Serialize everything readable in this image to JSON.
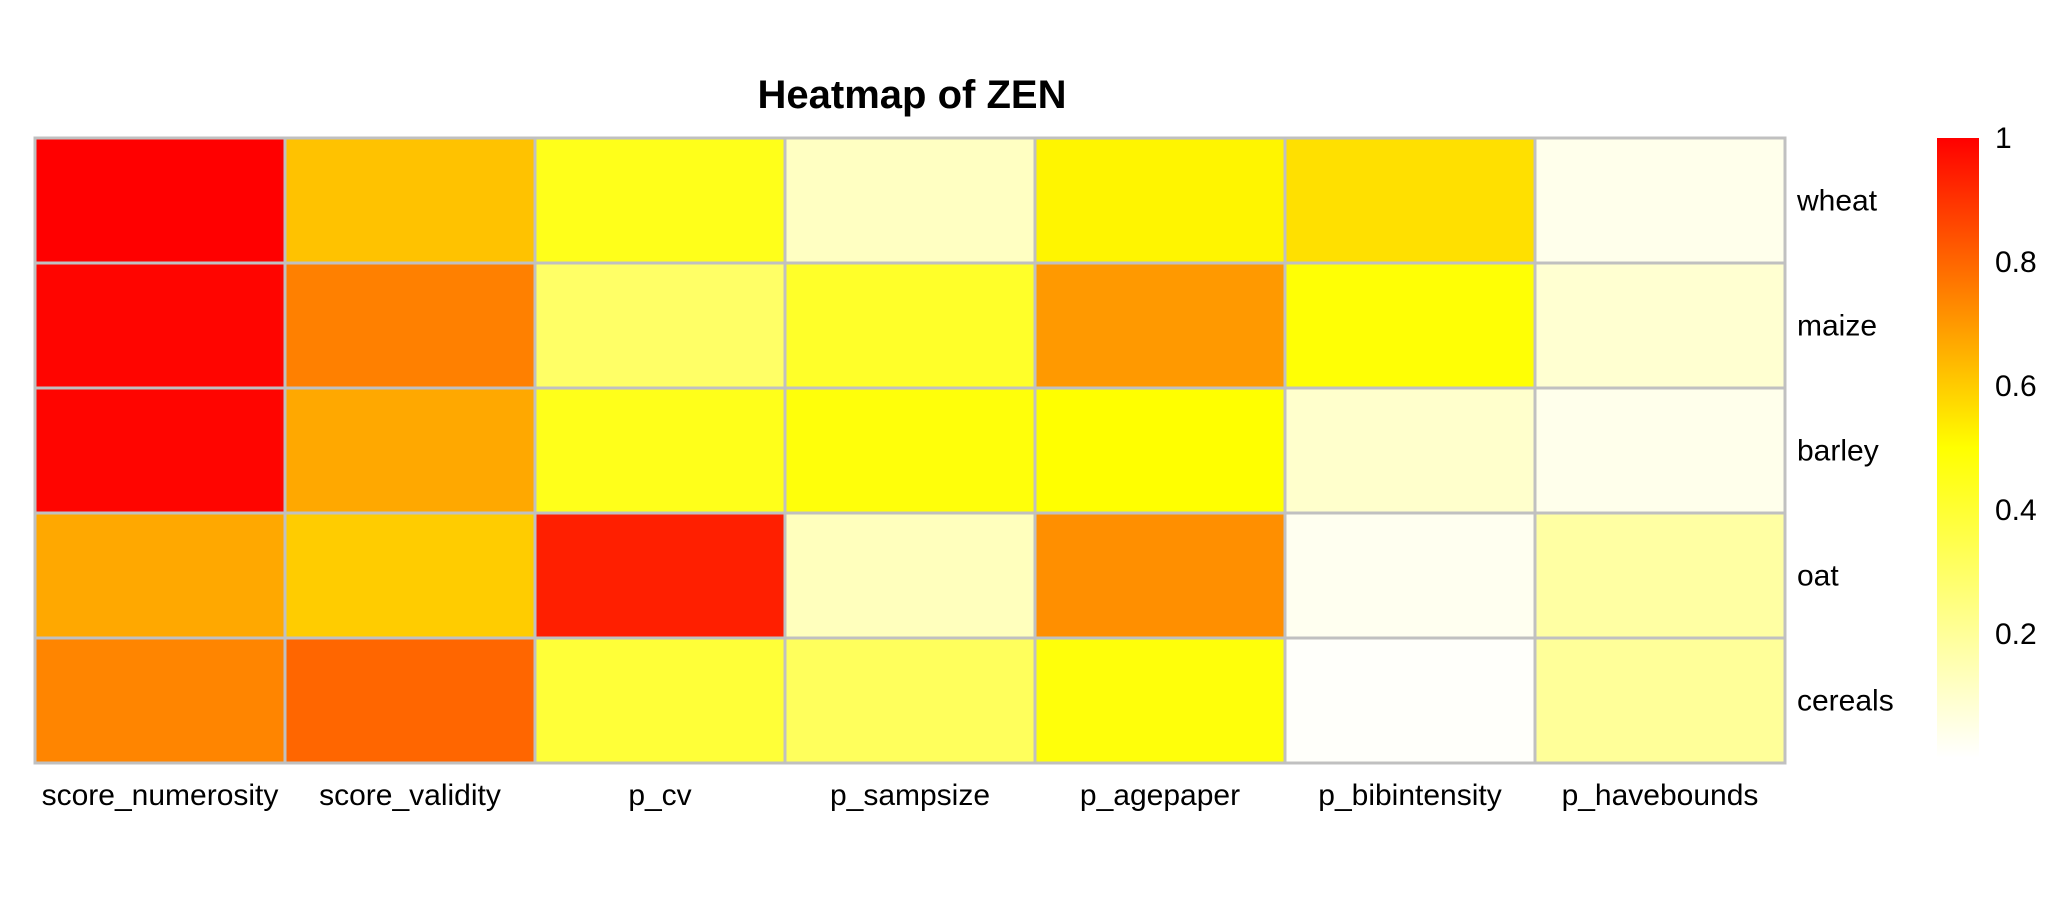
{
  "chart_data": {
    "type": "heatmap",
    "title": "Heatmap  of  ZEN",
    "columns": [
      "score_numerosity",
      "score_validity",
      "p_cv",
      "p_sampsize",
      "p_agepaper",
      "p_bibintensity",
      "p_havebounds"
    ],
    "rows": [
      "wheat",
      "maize",
      "barley",
      "oat",
      "cereals"
    ],
    "values": [
      [
        1.0,
        0.62,
        0.45,
        0.12,
        0.52,
        0.56,
        0.04
      ],
      [
        0.99,
        0.75,
        0.3,
        0.42,
        0.7,
        0.49,
        0.09
      ],
      [
        0.99,
        0.67,
        0.45,
        0.48,
        0.5,
        0.1,
        0.04
      ],
      [
        0.67,
        0.6,
        0.94,
        0.13,
        0.72,
        0.03,
        0.18
      ],
      [
        0.74,
        0.8,
        0.39,
        0.32,
        0.48,
        0.01,
        0.2
      ]
    ],
    "color_scale": {
      "min": 0.0,
      "max": 1.0,
      "low_color": "#FFFFFF",
      "mid_color": "#FFFF00",
      "high_color": "#FF0000"
    },
    "legend": {
      "placement": "right",
      "ticks": [
        "1",
        "0.8",
        "0.6",
        "0.4",
        "0.2"
      ],
      "tick_values": [
        1.0,
        0.8,
        0.6,
        0.4,
        0.2
      ]
    },
    "grid_color": "#C0C0C0"
  }
}
